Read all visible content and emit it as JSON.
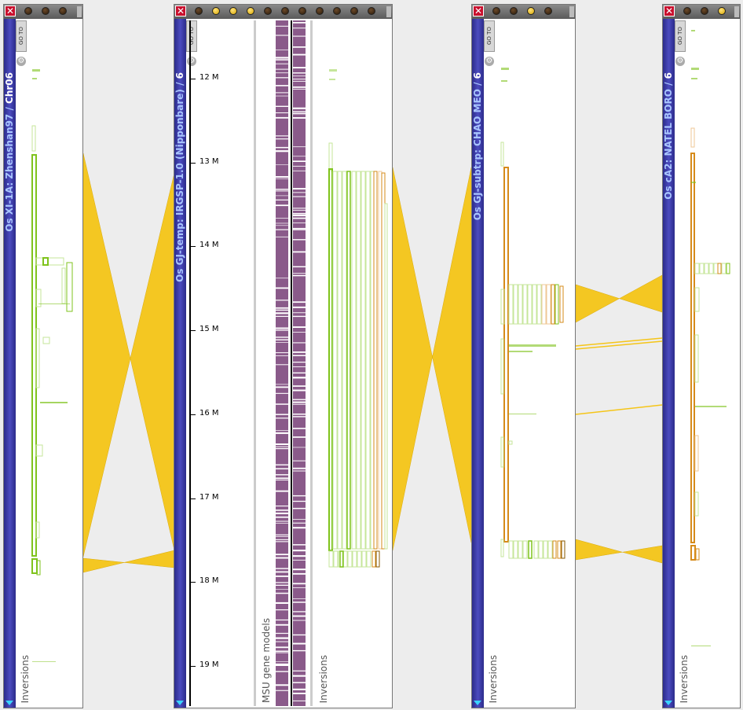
{
  "panels": [
    {
      "id": "p1",
      "genome": "Os XI-1A: Zhenshan97 / ",
      "chromosome": "Chr06",
      "track_label": "Inversions"
    },
    {
      "id": "p2",
      "genome": "Os GJ-temp: IRGSP-1.0 (Nipponbare) / ",
      "chromosome": "6",
      "gene_track_label": "MSU gene models",
      "track_label": "Inversions"
    },
    {
      "id": "p3",
      "genome": "Os GJ-subtrp: CHAO MEO / ",
      "chromosome": "6",
      "track_label": "Inversions"
    },
    {
      "id": "p4",
      "genome": "Os cA2: NATEL BORO / ",
      "chromosome": "6",
      "track_label": "Inversions"
    }
  ],
  "goto_label": "GO TO",
  "close_glyph": "✕",
  "ruler": {
    "ticks": [
      {
        "label": "12 M"
      },
      {
        "label": "13 M"
      },
      {
        "label": "14 M"
      },
      {
        "label": "15 M"
      },
      {
        "label": "16 M"
      },
      {
        "label": "17 M"
      },
      {
        "label": "18 M"
      },
      {
        "label": "19 M"
      }
    ]
  },
  "colors": {
    "ribbon": "#f5c518",
    "green": "#7fc31c",
    "light_green": "#c6e69a",
    "orange": "#d68b1a",
    "light_orange": "#efc796",
    "sidebar": "#3a3aa8",
    "gene": "#8a5a8a"
  }
}
